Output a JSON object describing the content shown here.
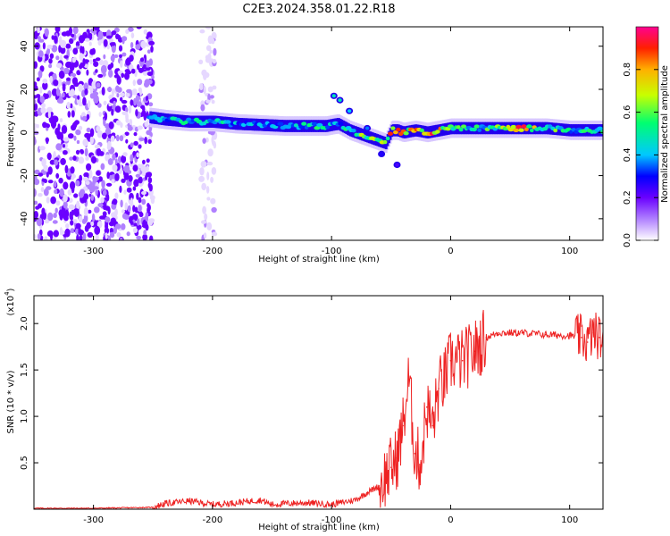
{
  "title": "C2E3.2024.358.01.22.R18",
  "chart_data": [
    {
      "type": "heatmap",
      "xlabel": "Height of straight line (km)",
      "ylabel": "Frequency (Hz)",
      "xlim": [
        -350,
        128
      ],
      "ylim": [
        -50,
        49
      ],
      "xticks": [
        "-300",
        "-200",
        "-100",
        "0",
        "100"
      ],
      "xtick_values": [
        -300,
        -200,
        -100,
        0,
        100
      ],
      "yticks": [
        "-40",
        "-20",
        "0",
        "20",
        "40"
      ],
      "ytick_values": [
        -40,
        -20,
        0,
        20,
        40
      ],
      "colorbar": {
        "label": "Normalized spectral amplitude",
        "range": [
          0,
          1
        ],
        "ticks": [
          "0.0",
          "0.2",
          "0.4",
          "0.6",
          "0.8"
        ],
        "tick_values": [
          0.0,
          0.2,
          0.4,
          0.6,
          0.8
        ],
        "colormap": [
          "#ffffff",
          "#b080ff",
          "#6a00ff",
          "#0000ff",
          "#00c8ff",
          "#00ff70",
          "#c8ff00",
          "#ffb000",
          "#ff2000",
          "#ff0090"
        ]
      },
      "noise_regions": [
        {
          "x_range": [
            -350,
            -250
          ],
          "freq_range": [
            -50,
            49
          ],
          "density": "high",
          "color": "#6a00ff"
        },
        {
          "x_range": [
            -210,
            -198
          ],
          "freq_range": [
            -50,
            49
          ],
          "density": "low",
          "color": "#b080ff"
        }
      ],
      "ridge": {
        "x": [
          -253,
          -240,
          -220,
          -200,
          -180,
          -160,
          -140,
          -120,
          -105,
          -95,
          -85,
          -75,
          -65,
          -55,
          -50,
          -45,
          -40,
          -30,
          -20,
          -10,
          0,
          20,
          40,
          60,
          80,
          100,
          110,
          120,
          128
        ],
        "freq": [
          7,
          6,
          5,
          5,
          4,
          3.5,
          3,
          3,
          3,
          4,
          1,
          -1,
          -3,
          -5,
          1,
          1,
          0,
          1,
          0,
          1,
          2,
          2,
          2,
          2,
          2,
          1,
          1,
          1,
          1
        ],
        "amplitude": [
          0.45,
          0.45,
          0.5,
          0.5,
          0.45,
          0.45,
          0.45,
          0.5,
          0.5,
          0.45,
          0.55,
          0.6,
          0.65,
          0.7,
          0.8,
          0.85,
          0.8,
          0.75,
          0.85,
          0.8,
          0.6,
          0.5,
          0.6,
          0.85,
          0.6,
          0.5,
          0.5,
          0.5,
          0.5
        ]
      },
      "side_blobs": [
        {
          "x": -98,
          "freq": 17,
          "amplitude": 0.5
        },
        {
          "x": -93,
          "freq": 15,
          "amplitude": 0.5
        },
        {
          "x": -85,
          "freq": 10,
          "amplitude": 0.45
        },
        {
          "x": -70,
          "freq": 2,
          "amplitude": 0.4
        },
        {
          "x": -58,
          "freq": -10,
          "amplitude": 0.3
        },
        {
          "x": -45,
          "freq": -15,
          "amplitude": 0.25
        }
      ]
    },
    {
      "type": "line",
      "xlabel": "Height of straight line (km)",
      "ylabel": "SNR (10 * v/v)",
      "y_multiplier": "(x10",
      "y_multiplier_exp": "4",
      "y_multiplier_close": ")",
      "xlim": [
        -350,
        128
      ],
      "ylim": [
        0,
        2.3
      ],
      "xticks": [
        "-300",
        "-200",
        "-100",
        "0",
        "100"
      ],
      "xtick_values": [
        -300,
        -200,
        -100,
        0,
        100
      ],
      "yticks": [
        "0.5",
        "1.0",
        "1.5",
        "2.0"
      ],
      "ytick_values": [
        0.5,
        1.0,
        1.5,
        2.0
      ],
      "series": [
        {
          "color": "#ee2222",
          "x": [
            -350,
            -300,
            -250,
            -240,
            -220,
            -200,
            -180,
            -160,
            -150,
            -140,
            -120,
            -100,
            -80,
            -70,
            -60,
            -55,
            -50,
            -45,
            -40,
            -35,
            -30,
            -25,
            -20,
            -15,
            -10,
            -5,
            0,
            10,
            20,
            30,
            40,
            60,
            80,
            100,
            110,
            115,
            120,
            125,
            128
          ],
          "y": [
            0.01,
            0.01,
            0.02,
            0.06,
            0.09,
            0.05,
            0.07,
            0.1,
            0.05,
            0.06,
            0.07,
            0.05,
            0.1,
            0.18,
            0.25,
            0.35,
            0.45,
            0.55,
            0.9,
            1.4,
            0.6,
            0.5,
            1.1,
            0.9,
            1.3,
            1.4,
            1.6,
            1.6,
            1.7,
            1.85,
            1.9,
            1.9,
            1.88,
            1.87,
            1.85,
            1.8,
            1.9,
            1.85,
            1.83
          ]
        }
      ]
    }
  ]
}
